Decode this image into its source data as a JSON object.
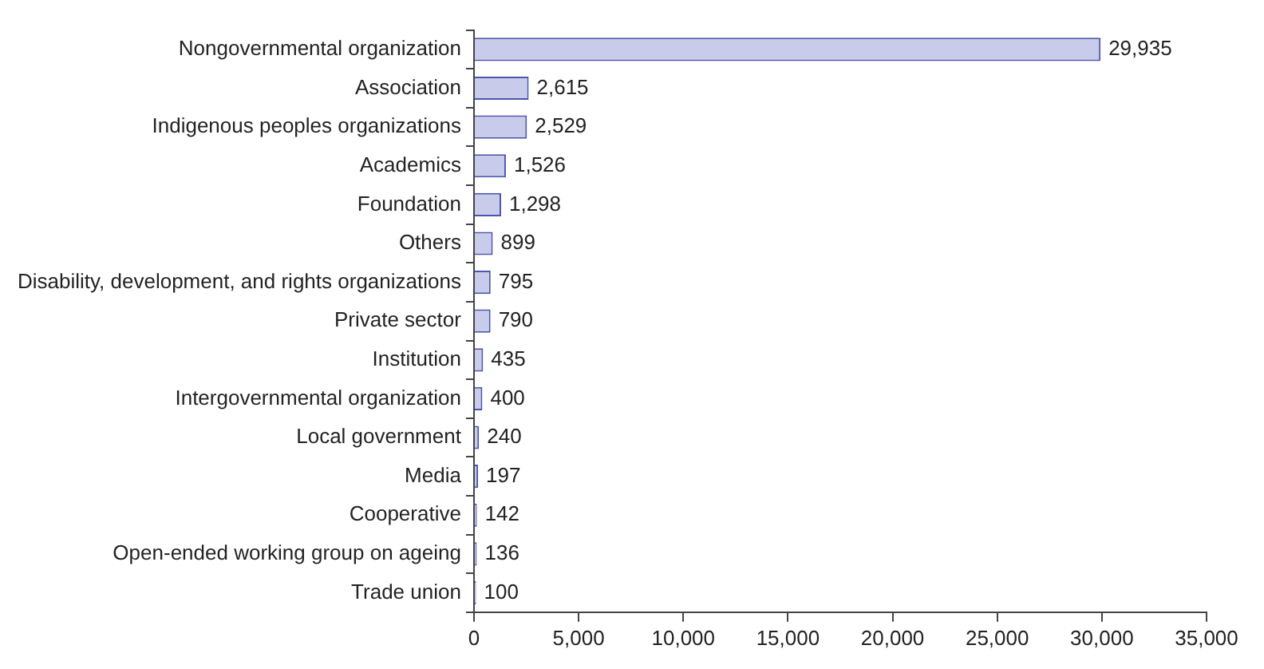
{
  "chart_data": {
    "type": "bar",
    "orientation": "horizontal",
    "categories": [
      "Nongovernmental organization",
      "Association",
      "Indigenous peoples organizations",
      "Academics",
      "Foundation",
      "Others",
      "Disability, development, and rights organizations",
      "Private sector",
      "Institution",
      "Intergovernmental organization",
      "Local government",
      "Media",
      "Cooperative",
      "Open-ended working group on ageing",
      "Trade union"
    ],
    "values": [
      29935,
      2615,
      2529,
      1526,
      1298,
      899,
      795,
      790,
      435,
      400,
      240,
      197,
      142,
      136,
      100
    ],
    "value_labels": [
      "29,935",
      "2,615",
      "2,529",
      "1,526",
      "1,298",
      "899",
      "795",
      "790",
      "435",
      "400",
      "240",
      "197",
      "142",
      "136",
      "100"
    ],
    "color": "#c8cbea",
    "xlim": [
      0,
      35000
    ],
    "xticks": [
      0,
      {
        "value": 5000,
        "label": "5,000"
      },
      {
        "value": 10000,
        "label": "10,000"
      },
      {
        "value": 15000,
        "label": "15,000"
      },
      {
        "value": 20000,
        "label": "20,000"
      },
      {
        "value": 25000,
        "label": "25,000"
      },
      {
        "value": 30000,
        "label": "30,000"
      },
      {
        "value": 35000,
        "label": "35,000"
      }
    ],
    "grid": false,
    "legend": false
  }
}
